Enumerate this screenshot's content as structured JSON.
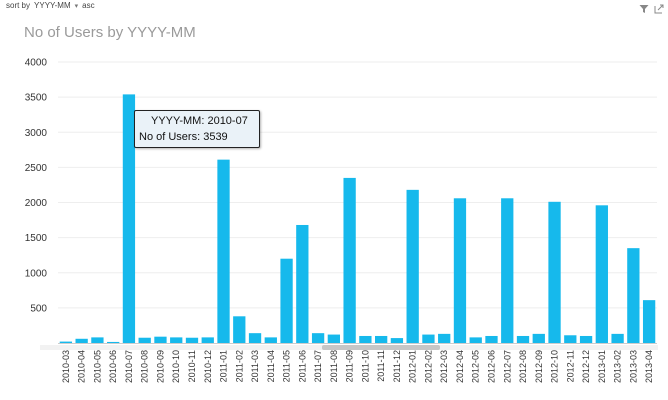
{
  "sort": {
    "prefix": "sort by",
    "field": "YYYY-MM",
    "order": "asc"
  },
  "toolbar": {
    "filter_icon": "filter-icon",
    "popout_icon": "popout-icon"
  },
  "colors": {
    "bar": "#16b9ec",
    "grid": "#eeeeee",
    "axis": "#cccccc"
  },
  "tooltip": {
    "field_label": "YYYY-MM",
    "field_value": "2010-07",
    "measure_label": "No of Users",
    "measure_value": "3539"
  },
  "chart_data": {
    "type": "bar",
    "title": "No of Users by YYYY-MM",
    "xlabel": "",
    "ylabel": "",
    "ylim": [
      0,
      4000
    ],
    "yticks": [
      500,
      1000,
      1500,
      2000,
      2500,
      3000,
      3500,
      4000
    ],
    "grid": true,
    "categories": [
      "2010-03",
      "2010-04",
      "2010-05",
      "2010-06",
      "2010-07",
      "2010-08",
      "2010-09",
      "2010-10",
      "2010-11",
      "2010-12",
      "2011-01",
      "2011-02",
      "2011-03",
      "2011-04",
      "2011-05",
      "2011-06",
      "2011-07",
      "2011-08",
      "2011-09",
      "2011-10",
      "2011-11",
      "2011-12",
      "2012-01",
      "2012-02",
      "2012-03",
      "2012-04",
      "2012-05",
      "2012-06",
      "2012-07",
      "2012-08",
      "2012-09",
      "2012-10",
      "2012-11",
      "2012-12",
      "2013-01",
      "2013-02",
      "2013-03",
      "2013-04"
    ],
    "values": [
      20,
      60,
      80,
      15,
      3539,
      75,
      90,
      80,
      75,
      80,
      2610,
      380,
      140,
      80,
      1200,
      1680,
      140,
      120,
      2350,
      100,
      100,
      70,
      2180,
      120,
      130,
      2060,
      80,
      100,
      2060,
      100,
      130,
      2010,
      110,
      100,
      1960,
      130,
      1350,
      610
    ]
  }
}
